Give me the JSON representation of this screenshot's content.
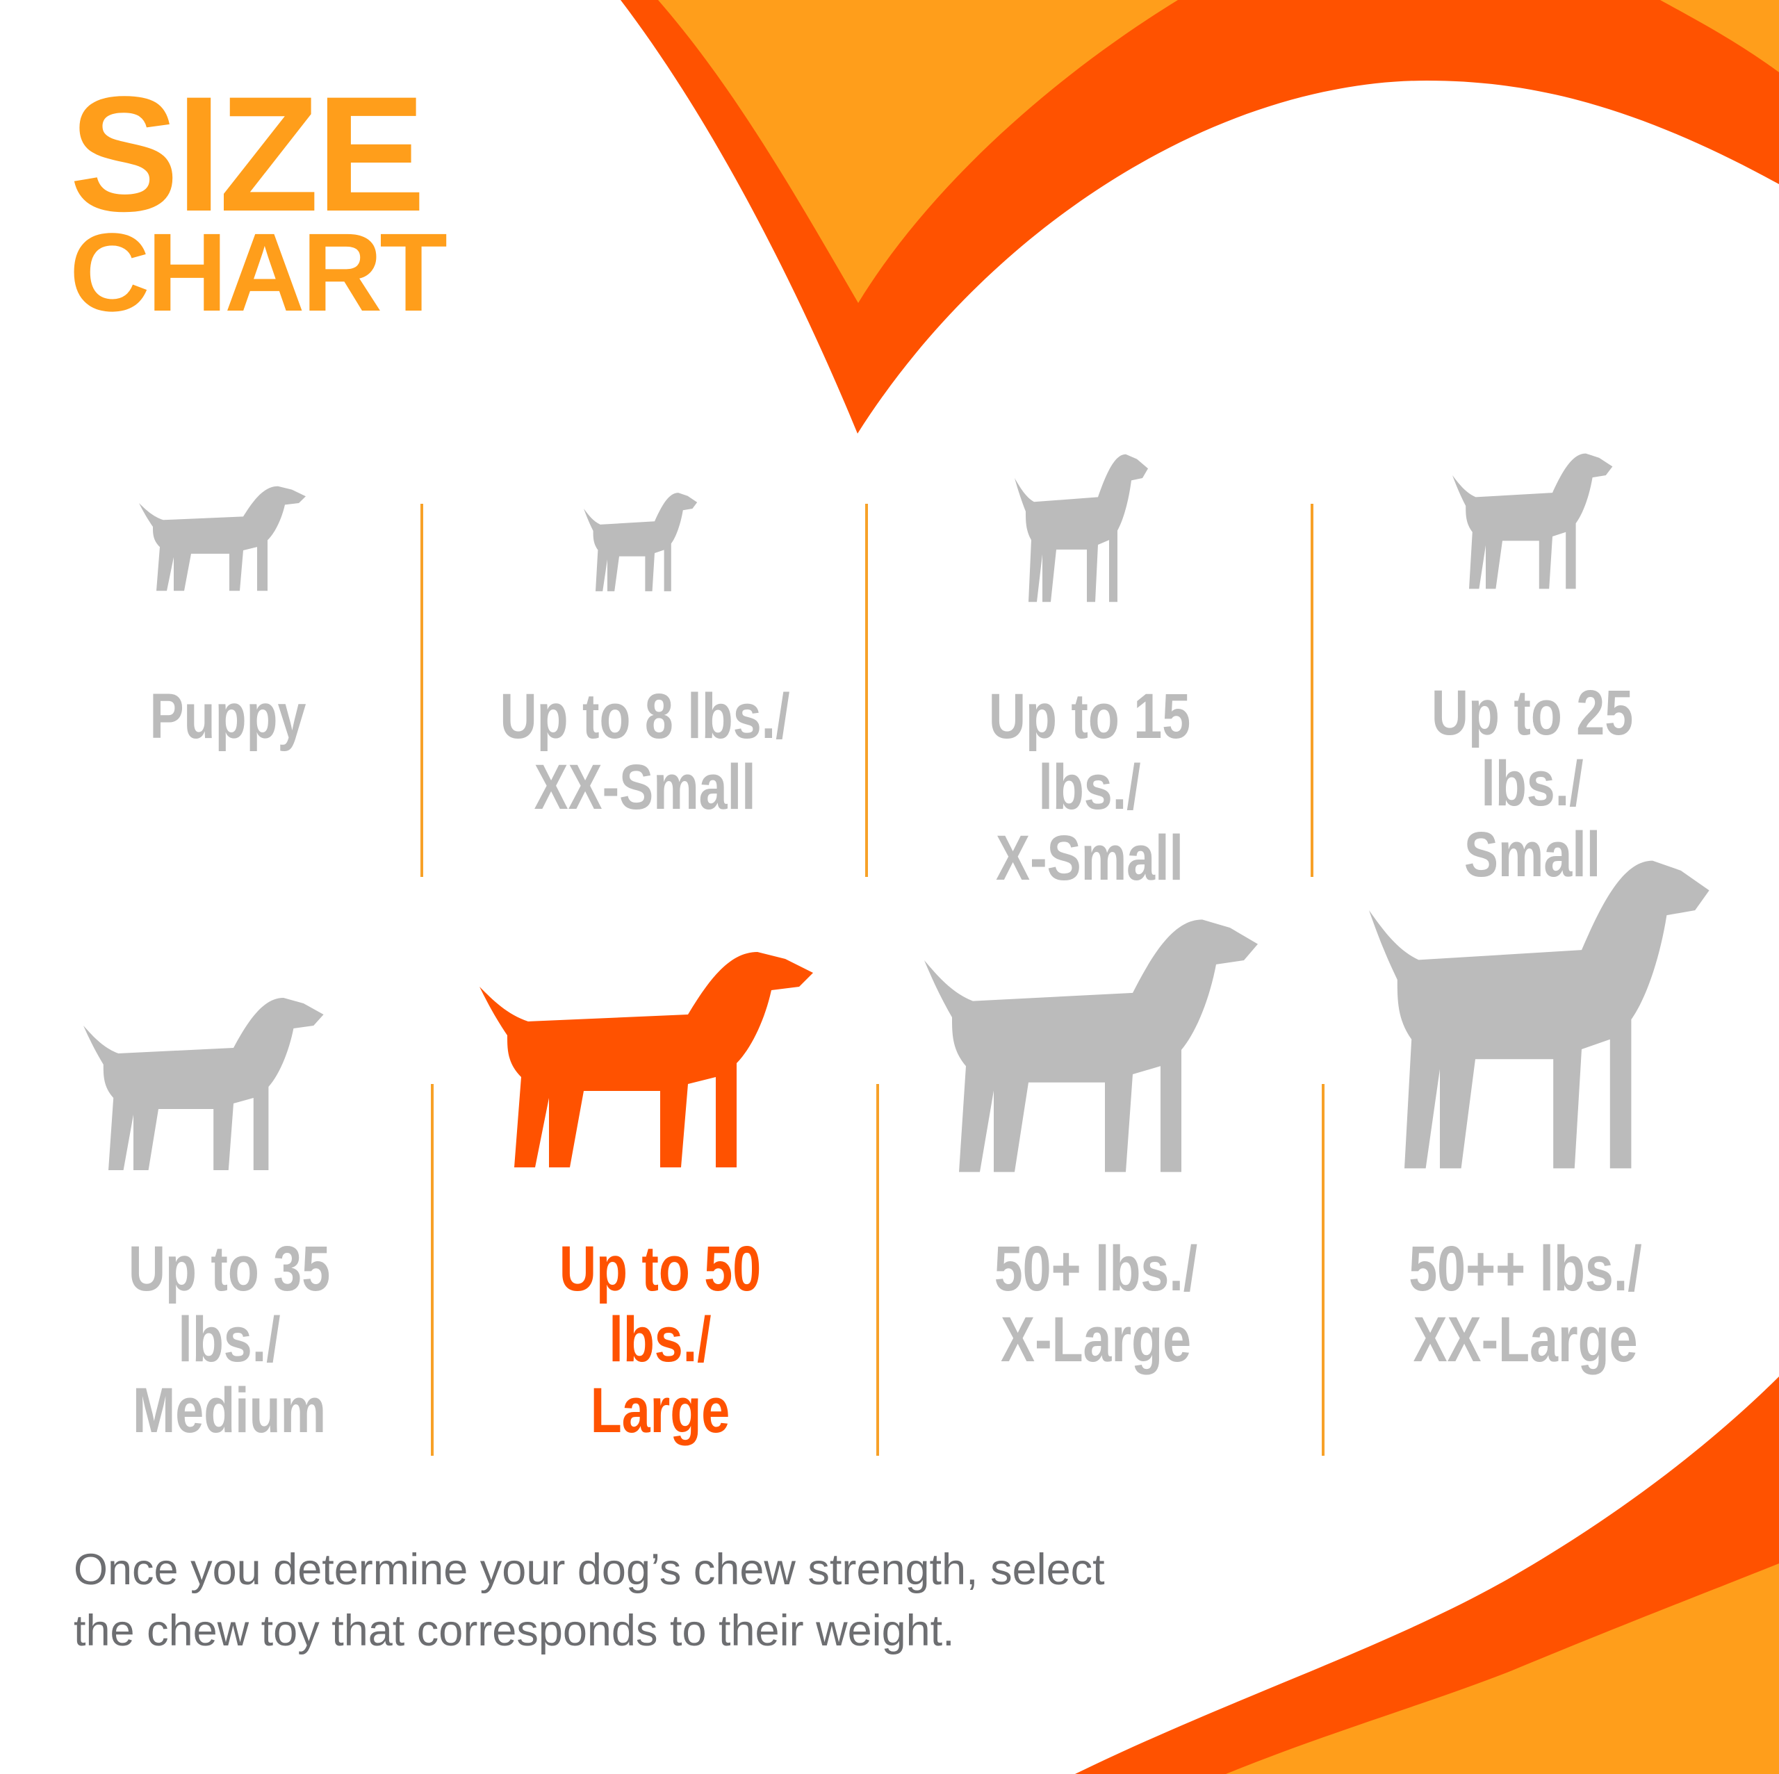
{
  "title": {
    "line1": "SIZE",
    "line2": "CHART"
  },
  "colors": {
    "accent_orange": "#FF9E1B",
    "accent_red": "#FF5200",
    "inactive_gray": "#BBBBBB",
    "body_text": "#6D6E71"
  },
  "sizes": [
    {
      "line1": "Puppy",
      "line2": "",
      "icon": "puppy-silhouette-icon",
      "highlighted": false
    },
    {
      "line1": "Up to 8 lbs./",
      "line2": "XX-Small",
      "icon": "chihuahua-silhouette-icon",
      "highlighted": false
    },
    {
      "line1": "Up to 15 lbs./",
      "line2": "X-Small",
      "icon": "small-terrier-silhouette-icon",
      "highlighted": false
    },
    {
      "line1": "Up to 25 lbs./",
      "line2": "Small",
      "icon": "yorkie-silhouette-icon",
      "highlighted": false
    },
    {
      "line1": "Up to 35 lbs./",
      "line2": "Medium",
      "icon": "beagle-silhouette-icon",
      "highlighted": false
    },
    {
      "line1": "Up to 50 lbs./",
      "line2": "Large",
      "icon": "labrador-silhouette-icon",
      "highlighted": true
    },
    {
      "line1": "50+ lbs./",
      "line2": "X-Large",
      "icon": "shepherd-silhouette-icon",
      "highlighted": false
    },
    {
      "line1": "50++ lbs./",
      "line2": "XX-Large",
      "icon": "great-dane-silhouette-icon",
      "highlighted": false
    }
  ],
  "footer": {
    "line1": "Once you determine your dog’s chew strength, select",
    "line2": "the chew toy that corresponds to their weight."
  }
}
